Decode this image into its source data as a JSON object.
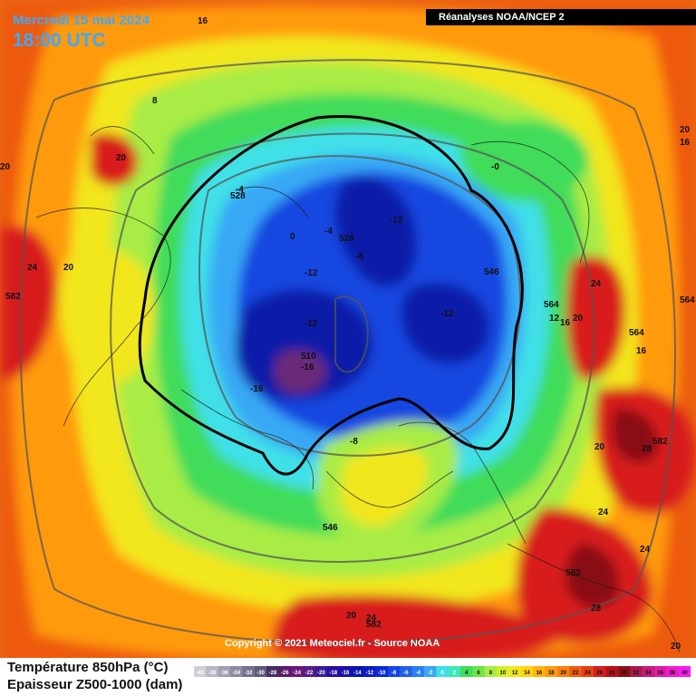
{
  "header": {
    "date": "Mercredi 15 mai 2024",
    "time": "18:00 UTC",
    "source": "Réanalyses NOAA/NCEP 2"
  },
  "footer": {
    "copyright": "Copyright © 2021 Meteociel.fr - Source NOAA",
    "legend_line1": "Température 850hPa (°C)",
    "legend_line2": "Epaisseur Z500-1000 (dam)"
  },
  "colors": {
    "deep_purple": "#6a2a78",
    "deep_blue": "#0a1ea8",
    "blue": "#1646e0",
    "light_blue": "#39a8f5",
    "cyan": "#3fe0e8",
    "green": "#3fdc5a",
    "light_green": "#a8ec44",
    "yellow": "#f2e61e",
    "orange": "#ff9a10",
    "dark_orange": "#ee5a0e",
    "red": "#d81e1e",
    "dark_red": "#8a1018"
  },
  "temperature_labels": [
    "16",
    "8",
    "20",
    "24",
    "20",
    "-4",
    "0",
    "-12",
    "-8",
    "-12",
    "-12",
    "-12",
    "-16",
    "-16",
    "-4",
    "-8",
    "-0",
    "16",
    "20",
    "24",
    "12",
    "16",
    "20",
    "16",
    "28",
    "20",
    "24",
    "24",
    "28",
    "20",
    "24",
    "20",
    "20",
    "20",
    "24"
  ],
  "thickness_labels": [
    "528",
    "528",
    "510",
    "546",
    "564",
    "564",
    "582",
    "582",
    "582",
    "546",
    "582",
    "564"
  ],
  "scale": {
    "ticks": [
      "-40",
      "-38",
      "-36",
      "-34",
      "-32",
      "-30",
      "-28",
      "-26",
      "-24",
      "-22",
      "-20",
      "-18",
      "-16",
      "-14",
      "-12",
      "-10",
      "-8",
      "-6",
      "-4",
      "-2",
      "0",
      "2",
      "4",
      "6",
      "8",
      "10",
      "12",
      "14",
      "16",
      "18",
      "20",
      "22",
      "24",
      "26",
      "28",
      "30",
      "32",
      "34",
      "36",
      "38",
      "40"
    ],
    "colors": [
      "#cfcfd8",
      "#b8b8c8",
      "#a0a0b4",
      "#8a8aa2",
      "#74708c",
      "#5e5a78",
      "#482a60",
      "#5a1a6a",
      "#6a1a7a",
      "#5a1a8a",
      "#3a1a98",
      "#2a10a0",
      "#1a10a8",
      "#0a14b0",
      "#0a1ec0",
      "#0a2ad8",
      "#1646e0",
      "#2060ea",
      "#2a80f0",
      "#39a8f5",
      "#3fe0e8",
      "#3ee8b8",
      "#3fdc5a",
      "#6ee44a",
      "#a8ec44",
      "#d4ee2e",
      "#f2e61e",
      "#ffd414",
      "#ffb410",
      "#ff9a10",
      "#f88010",
      "#ee5a0e",
      "#e84010",
      "#d81e1e",
      "#b81018",
      "#8a1018",
      "#a81a4a",
      "#c81a7a",
      "#e01aa8",
      "#f01ad0",
      "#f81af0"
    ]
  }
}
